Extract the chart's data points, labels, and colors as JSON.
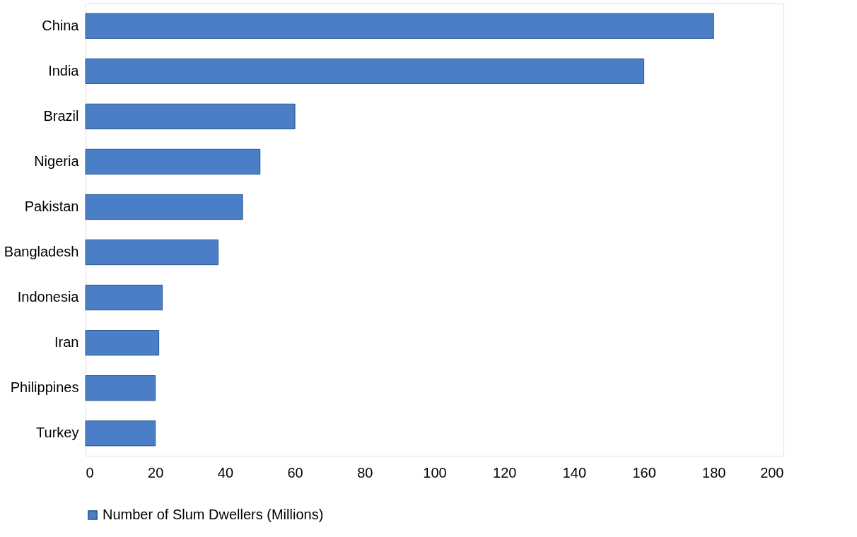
{
  "chart_data": {
    "type": "bar",
    "orientation": "horizontal",
    "categories": [
      "China",
      "India",
      "Brazil",
      "Nigeria",
      "Pakistan",
      "Bangladesh",
      "Indonesia",
      "Iran",
      "Philippines",
      "Turkey"
    ],
    "series": [
      {
        "name": "Number of Slum Dwellers (Millions)",
        "color": "#4a7fc8",
        "values": [
          180,
          160,
          60,
          50,
          45,
          38,
          22,
          21,
          20,
          20
        ]
      }
    ],
    "xlim": [
      0,
      200
    ],
    "xticks": [
      0,
      20,
      40,
      60,
      80,
      100,
      120,
      140,
      160,
      180,
      200
    ],
    "grid": false,
    "legend": "bottom"
  }
}
